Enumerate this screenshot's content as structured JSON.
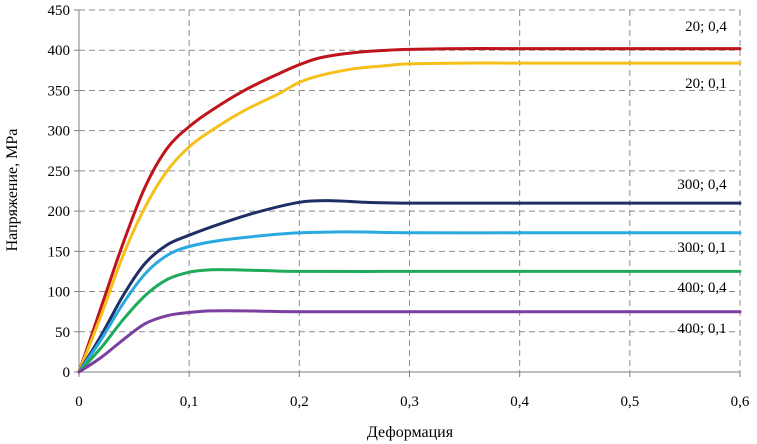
{
  "chart_data": {
    "type": "line",
    "xlabel": "Деформация",
    "ylabel": "Напряжение, MPa",
    "xlim": [
      0,
      0.6
    ],
    "ylim": [
      0,
      450
    ],
    "x_ticks": [
      0,
      0.1,
      0.2,
      0.3,
      0.4,
      0.5,
      0.6
    ],
    "x_tick_labels": [
      "0",
      "0,1",
      "0,2",
      "0,3",
      "0,4",
      "0,5",
      "0,6"
    ],
    "y_ticks": [
      0,
      50,
      100,
      150,
      200,
      250,
      300,
      350,
      400,
      450
    ],
    "y_tick_labels": [
      "0",
      "50",
      "100",
      "150",
      "200",
      "250",
      "300",
      "350",
      "400",
      "450"
    ],
    "grid": true,
    "grid_style": "dashed",
    "series": [
      {
        "name": "20; 0,4",
        "color": "#c0141c",
        "points": [
          [
            0,
            0
          ],
          [
            0.02,
            80
          ],
          [
            0.04,
            160
          ],
          [
            0.06,
            230
          ],
          [
            0.08,
            278
          ],
          [
            0.1,
            305
          ],
          [
            0.12,
            325
          ],
          [
            0.15,
            350
          ],
          [
            0.18,
            370
          ],
          [
            0.2,
            382
          ],
          [
            0.22,
            391
          ],
          [
            0.25,
            397
          ],
          [
            0.28,
            400
          ],
          [
            0.3,
            401
          ],
          [
            0.35,
            402
          ],
          [
            0.4,
            402
          ],
          [
            0.5,
            402
          ],
          [
            0.6,
            402
          ]
        ]
      },
      {
        "name": "20; 0,1",
        "color": "#f5c01a",
        "points": [
          [
            0,
            0
          ],
          [
            0.02,
            70
          ],
          [
            0.04,
            145
          ],
          [
            0.06,
            205
          ],
          [
            0.08,
            250
          ],
          [
            0.1,
            280
          ],
          [
            0.12,
            300
          ],
          [
            0.15,
            325
          ],
          [
            0.18,
            345
          ],
          [
            0.2,
            360
          ],
          [
            0.22,
            369
          ],
          [
            0.25,
            377
          ],
          [
            0.28,
            381
          ],
          [
            0.3,
            383
          ],
          [
            0.35,
            384
          ],
          [
            0.4,
            384
          ],
          [
            0.5,
            384
          ],
          [
            0.6,
            384
          ]
        ]
      },
      {
        "name": "300; 0,4",
        "color": "#1f2f66",
        "points": [
          [
            0,
            0
          ],
          [
            0.02,
            45
          ],
          [
            0.04,
            95
          ],
          [
            0.06,
            135
          ],
          [
            0.08,
            158
          ],
          [
            0.1,
            170
          ],
          [
            0.13,
            185
          ],
          [
            0.16,
            198
          ],
          [
            0.2,
            211
          ],
          [
            0.23,
            213
          ],
          [
            0.26,
            211
          ],
          [
            0.3,
            210
          ],
          [
            0.4,
            210
          ],
          [
            0.5,
            210
          ],
          [
            0.6,
            210
          ]
        ]
      },
      {
        "name": "300; 0,1",
        "color": "#2aa8e0",
        "points": [
          [
            0,
            0
          ],
          [
            0.02,
            40
          ],
          [
            0.04,
            85
          ],
          [
            0.06,
            122
          ],
          [
            0.08,
            145
          ],
          [
            0.1,
            156
          ],
          [
            0.13,
            164
          ],
          [
            0.17,
            170
          ],
          [
            0.2,
            173
          ],
          [
            0.23,
            174
          ],
          [
            0.26,
            174
          ],
          [
            0.3,
            173
          ],
          [
            0.4,
            173
          ],
          [
            0.5,
            173
          ],
          [
            0.6,
            173
          ]
        ]
      },
      {
        "name": "400; 0,4",
        "color": "#1faa5a",
        "points": [
          [
            0,
            0
          ],
          [
            0.02,
            30
          ],
          [
            0.04,
            65
          ],
          [
            0.06,
            95
          ],
          [
            0.08,
            115
          ],
          [
            0.1,
            124
          ],
          [
            0.12,
            127
          ],
          [
            0.14,
            127
          ],
          [
            0.17,
            126
          ],
          [
            0.2,
            125
          ],
          [
            0.3,
            125
          ],
          [
            0.4,
            125
          ],
          [
            0.5,
            125
          ],
          [
            0.6,
            125
          ]
        ]
      },
      {
        "name": "400; 0,1",
        "color": "#7b3fa0",
        "points": [
          [
            0,
            0
          ],
          [
            0.02,
            18
          ],
          [
            0.04,
            40
          ],
          [
            0.06,
            60
          ],
          [
            0.08,
            70
          ],
          [
            0.1,
            74
          ],
          [
            0.12,
            76
          ],
          [
            0.15,
            76
          ],
          [
            0.2,
            75
          ],
          [
            0.3,
            75
          ],
          [
            0.4,
            75
          ],
          [
            0.5,
            75
          ],
          [
            0.6,
            75
          ]
        ]
      }
    ]
  }
}
